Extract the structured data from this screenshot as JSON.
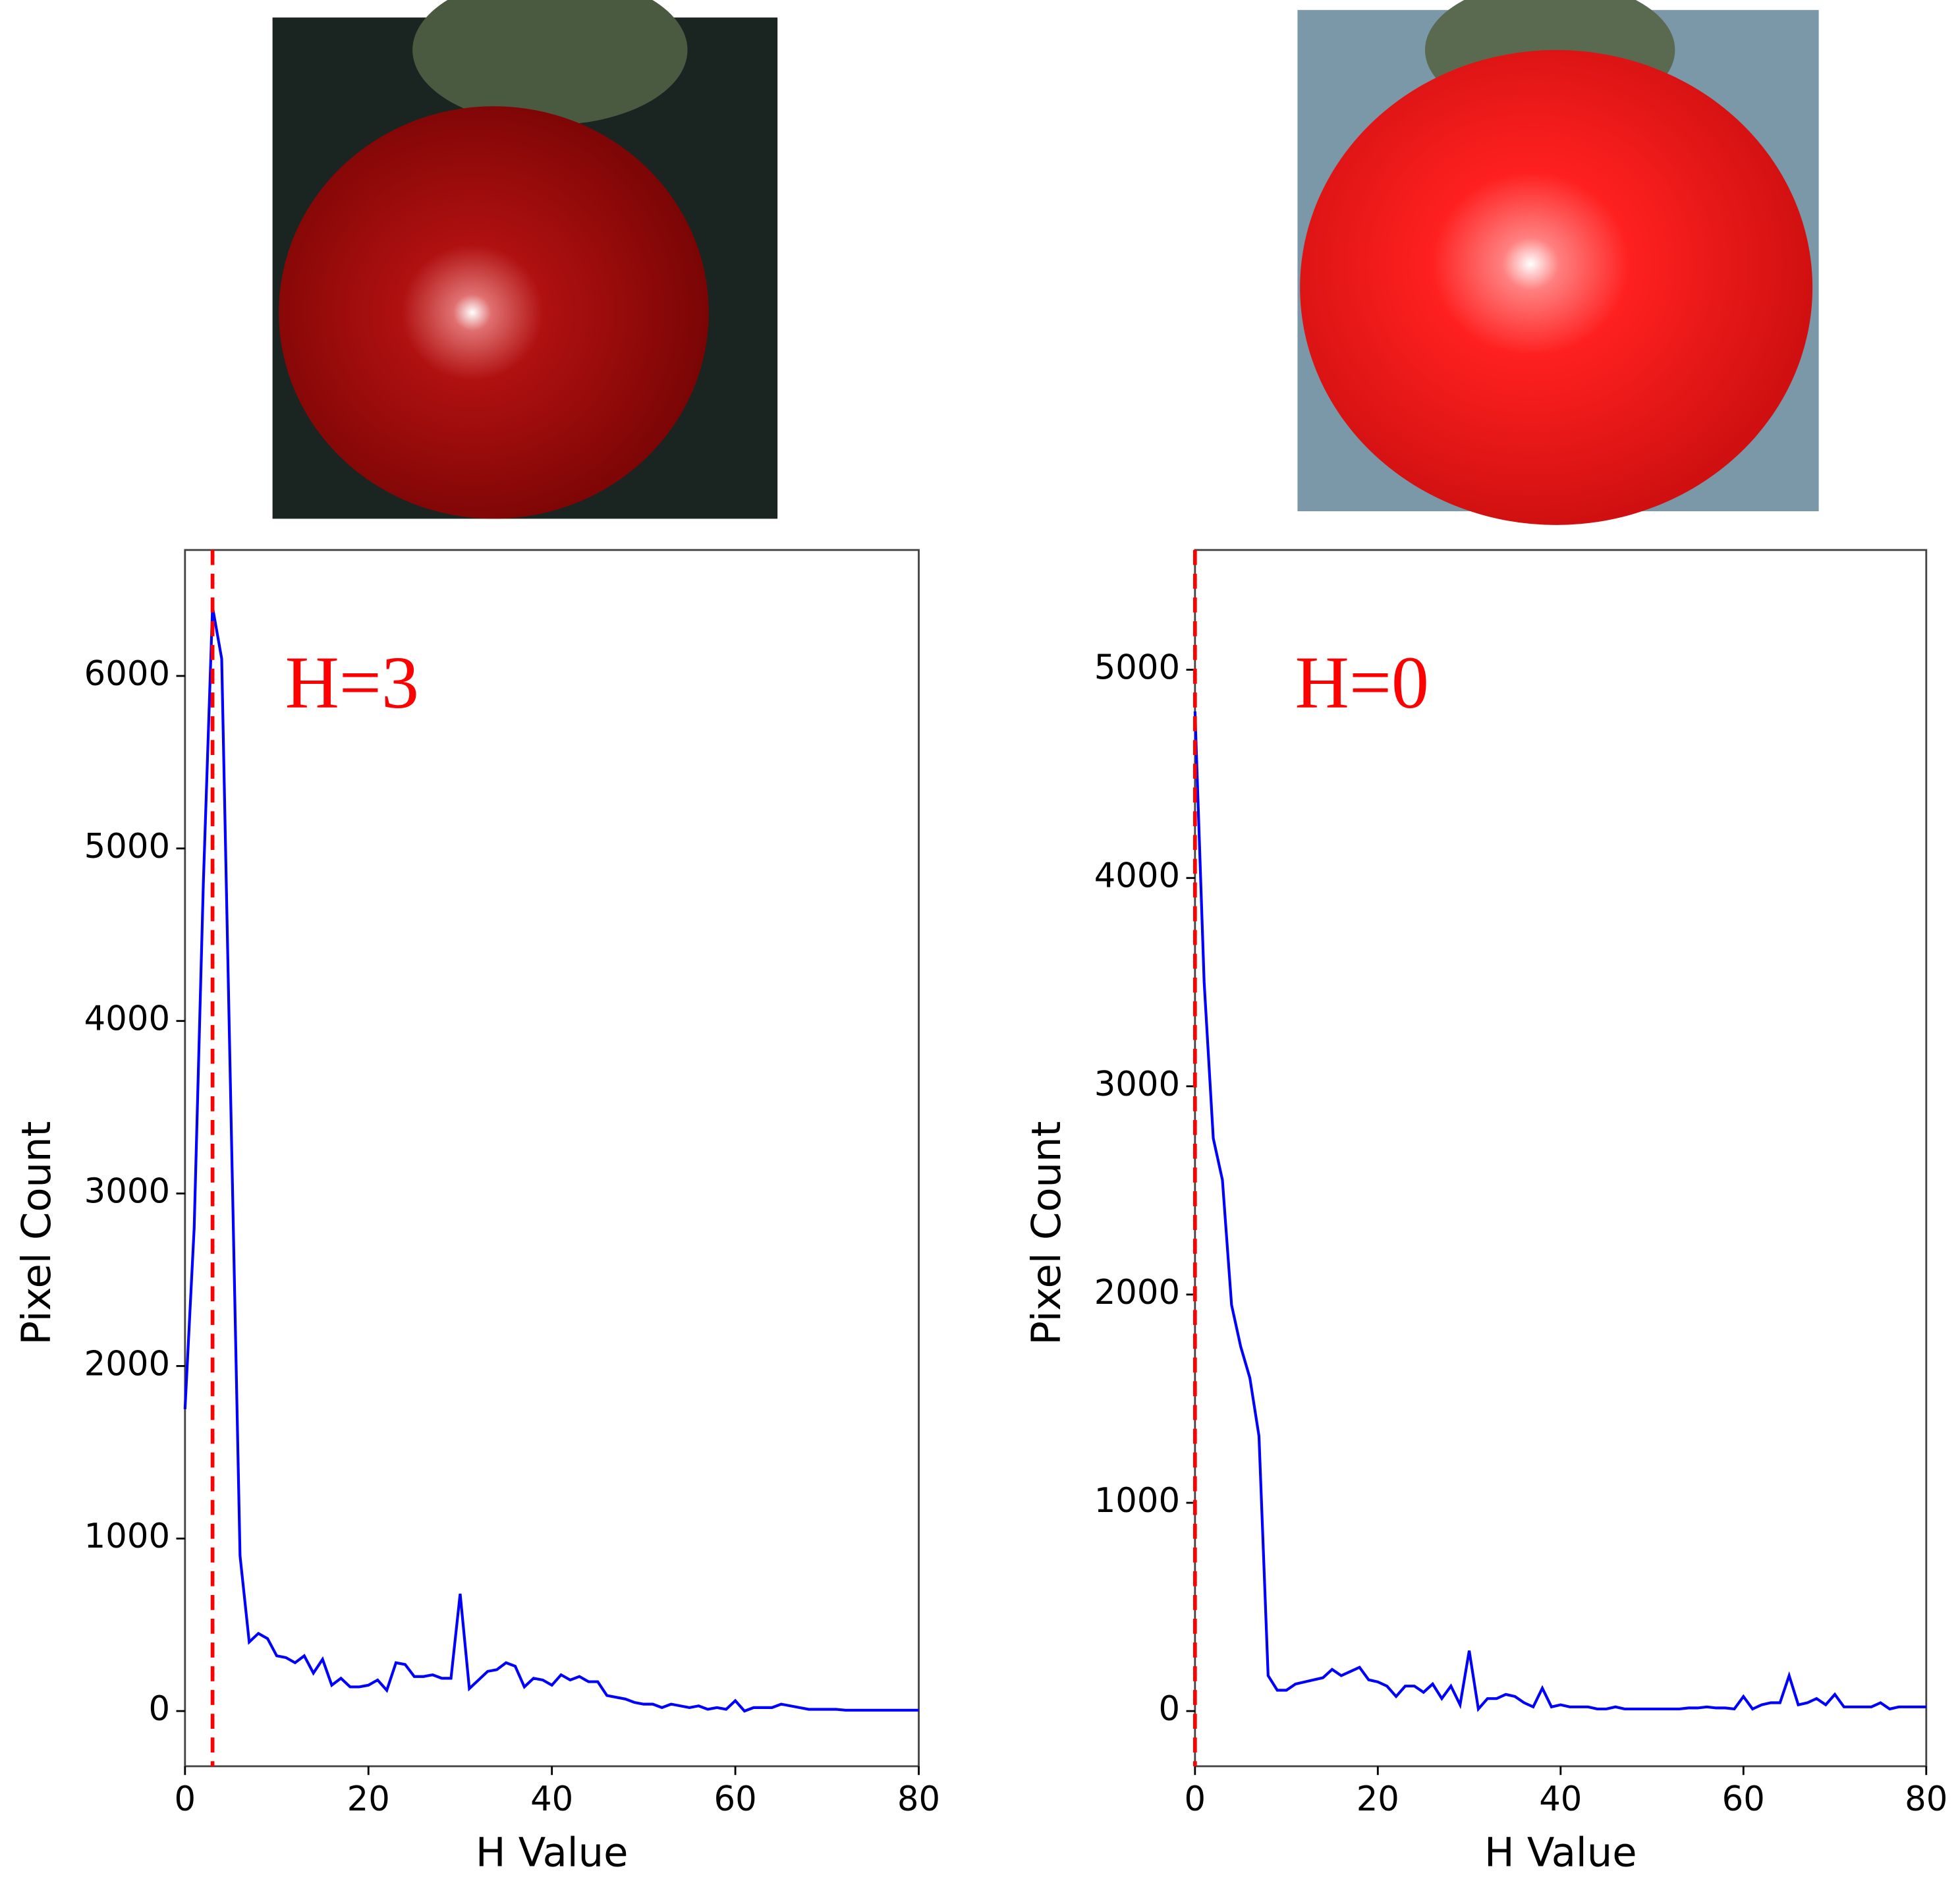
{
  "chart_data": [
    {
      "type": "line",
      "xlabel": "H Value",
      "ylabel": "Pixel Count",
      "annotation": "H=3",
      "vline": 3,
      "vline_color": "#ff0000",
      "color": "#0000ff",
      "x": [
        0,
        1,
        2,
        3,
        4,
        5,
        6,
        7,
        8,
        9,
        10,
        11,
        12,
        13,
        14,
        15,
        16,
        17,
        18,
        19,
        20,
        21,
        22,
        23,
        24,
        25,
        26,
        27,
        28,
        29,
        30,
        31,
        32,
        33,
        34,
        35,
        36,
        37,
        38,
        39,
        40,
        41,
        42,
        43,
        44,
        45,
        46,
        47,
        48,
        49,
        50,
        51,
        52,
        53,
        54,
        55,
        56,
        57,
        58,
        59,
        60,
        61,
        62,
        63,
        64,
        65,
        66,
        67,
        68,
        69,
        70,
        71,
        72,
        73,
        74,
        75,
        76,
        77,
        78,
        79,
        80
      ],
      "values": [
        1750,
        2800,
        4800,
        6400,
        6100,
        3500,
        900,
        400,
        450,
        420,
        320,
        310,
        280,
        320,
        220,
        300,
        150,
        190,
        140,
        140,
        150,
        180,
        120,
        280,
        270,
        200,
        200,
        210,
        190,
        190,
        680,
        130,
        180,
        230,
        240,
        280,
        260,
        140,
        190,
        180,
        150,
        210,
        180,
        200,
        170,
        170,
        90,
        80,
        70,
        50,
        40,
        40,
        20,
        40,
        30,
        20,
        30,
        10,
        20,
        10,
        60,
        0,
        20,
        20,
        20,
        40,
        30,
        20,
        10,
        10,
        10,
        10,
        5,
        5,
        5,
        5,
        5,
        5,
        5,
        5,
        5
      ],
      "xlim": [
        0,
        80
      ],
      "xticks": [
        0,
        20,
        40,
        60,
        80
      ],
      "ylim": [
        -320,
        6730
      ],
      "yticks": [
        0,
        1000,
        2000,
        3000,
        4000,
        5000,
        6000
      ]
    },
    {
      "type": "line",
      "xlabel": "H Value",
      "ylabel": "Pixel Count",
      "annotation": "H=0",
      "vline": 0,
      "vline_color": "#ff0000",
      "color": "#0000ff",
      "x": [
        0,
        1,
        2,
        3,
        4,
        5,
        6,
        7,
        8,
        9,
        10,
        11,
        12,
        13,
        14,
        15,
        16,
        17,
        18,
        19,
        20,
        21,
        22,
        23,
        24,
        25,
        26,
        27,
        28,
        29,
        30,
        31,
        32,
        33,
        34,
        35,
        36,
        37,
        38,
        39,
        40,
        41,
        42,
        43,
        44,
        45,
        46,
        47,
        48,
        49,
        50,
        51,
        52,
        53,
        54,
        55,
        56,
        57,
        58,
        59,
        60,
        61,
        62,
        63,
        64,
        65,
        66,
        67,
        68,
        69,
        70,
        71,
        72,
        73,
        74,
        75,
        76,
        77,
        78,
        79,
        80
      ],
      "values": [
        4800,
        3500,
        2750,
        2550,
        1950,
        1750,
        1600,
        1320,
        170,
        100,
        100,
        130,
        140,
        150,
        160,
        200,
        170,
        190,
        210,
        150,
        140,
        120,
        70,
        120,
        120,
        90,
        130,
        60,
        120,
        30,
        290,
        10,
        60,
        60,
        80,
        70,
        40,
        20,
        110,
        20,
        30,
        20,
        20,
        20,
        10,
        10,
        20,
        10,
        10,
        10,
        10,
        10,
        10,
        10,
        15,
        15,
        20,
        15,
        15,
        10,
        70,
        10,
        30,
        40,
        40,
        170,
        30,
        40,
        60,
        30,
        80,
        20,
        20,
        20,
        20,
        40,
        10,
        20,
        20,
        20,
        20
      ],
      "xlim": [
        0,
        80
      ],
      "xticks": [
        0,
        20,
        40,
        60,
        80
      ],
      "ylim": [
        -265,
        5575
      ],
      "yticks": [
        0,
        1000,
        2000,
        3000,
        4000,
        5000
      ]
    }
  ]
}
